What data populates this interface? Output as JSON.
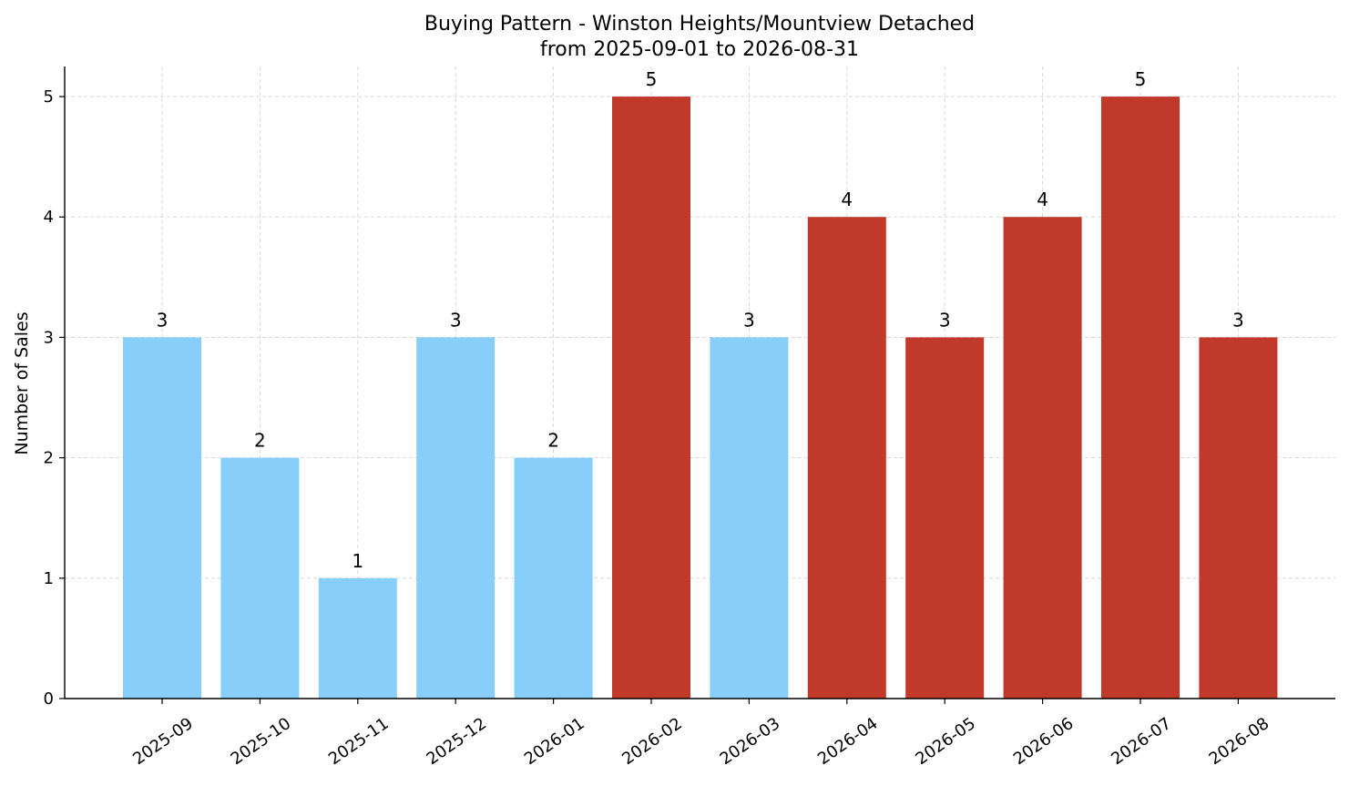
{
  "chart_data": {
    "type": "bar",
    "title": "Buying Pattern - Winston Heights/Mountview Detached",
    "subtitle": "from 2025-09-01 to 2026-08-31",
    "xlabel": "",
    "ylabel": "Number of Sales",
    "ylim": [
      0,
      5.25
    ],
    "yticks": [
      0,
      1,
      2,
      3,
      4,
      5
    ],
    "grid": true,
    "categories": [
      "2025-09",
      "2025-10",
      "2025-11",
      "2025-12",
      "2026-01",
      "2026-02",
      "2026-03",
      "2026-04",
      "2026-05",
      "2026-06",
      "2026-07",
      "2026-08"
    ],
    "values": [
      3,
      2,
      1,
      3,
      2,
      5,
      3,
      4,
      3,
      4,
      5,
      3
    ],
    "bar_colors": [
      "#87CEFA",
      "#87CEFA",
      "#87CEFA",
      "#87CEFA",
      "#87CEFA",
      "#C0392B",
      "#87CEFA",
      "#C0392B",
      "#C0392B",
      "#C0392B",
      "#C0392B",
      "#C0392B"
    ]
  }
}
